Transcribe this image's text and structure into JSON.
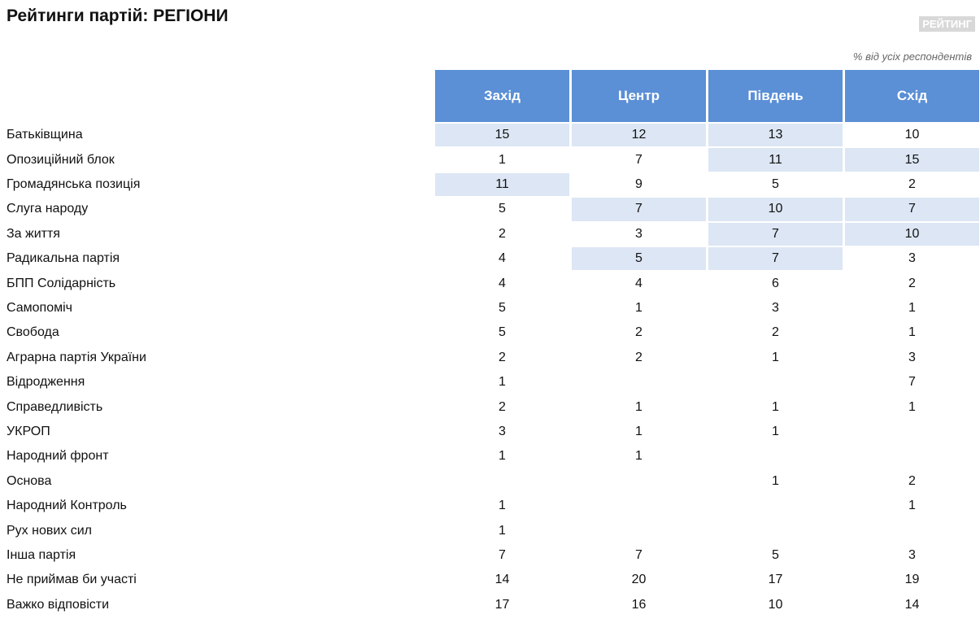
{
  "header": {
    "title": "Рейтинги партій: РЕГІОНИ",
    "logo": "РЕЙТИНГ",
    "note": "% від усіх респондентів"
  },
  "table": {
    "columns": [
      "Захід",
      "Центр",
      "Південь",
      "Схід"
    ],
    "rows": [
      {
        "label": "Батьківщина",
        "values": [
          15,
          12,
          13,
          10
        ],
        "highlight": [
          true,
          true,
          true,
          false
        ]
      },
      {
        "label": "Опозиційний блок",
        "values": [
          1,
          7,
          11,
          15
        ],
        "highlight": [
          false,
          false,
          true,
          true
        ]
      },
      {
        "label": "Громадянська позиція",
        "values": [
          11,
          9,
          5,
          2
        ],
        "highlight": [
          true,
          false,
          false,
          false
        ]
      },
      {
        "label": "Слуга народу",
        "values": [
          5,
          7,
          10,
          7
        ],
        "highlight": [
          false,
          true,
          true,
          true
        ]
      },
      {
        "label": "За життя",
        "values": [
          2,
          3,
          7,
          10
        ],
        "highlight": [
          false,
          false,
          true,
          true
        ]
      },
      {
        "label": "Радикальна партія",
        "values": [
          4,
          5,
          7,
          3
        ],
        "highlight": [
          false,
          true,
          true,
          false
        ]
      },
      {
        "label": "БПП Солідарність",
        "values": [
          4,
          4,
          6,
          2
        ],
        "highlight": [
          false,
          false,
          false,
          false
        ]
      },
      {
        "label": "Самопоміч",
        "values": [
          5,
          1,
          3,
          1
        ],
        "highlight": [
          false,
          false,
          false,
          false
        ]
      },
      {
        "label": "Свобода",
        "values": [
          5,
          2,
          2,
          1
        ],
        "highlight": [
          false,
          false,
          false,
          false
        ]
      },
      {
        "label": "Аграрна партія України",
        "values": [
          2,
          2,
          1,
          3
        ],
        "highlight": [
          false,
          false,
          false,
          false
        ]
      },
      {
        "label": "Відродження",
        "values": [
          1,
          null,
          null,
          7
        ],
        "highlight": [
          false,
          false,
          false,
          false
        ]
      },
      {
        "label": "Справедливість",
        "values": [
          2,
          1,
          1,
          1
        ],
        "highlight": [
          false,
          false,
          false,
          false
        ]
      },
      {
        "label": "УКРОП",
        "values": [
          3,
          1,
          1,
          null
        ],
        "highlight": [
          false,
          false,
          false,
          false
        ]
      },
      {
        "label": "Народний фронт",
        "values": [
          1,
          1,
          null,
          null
        ],
        "highlight": [
          false,
          false,
          false,
          false
        ]
      },
      {
        "label": "Основа",
        "values": [
          null,
          null,
          1,
          2
        ],
        "highlight": [
          false,
          false,
          false,
          false
        ]
      },
      {
        "label": "Народний Контроль",
        "values": [
          1,
          null,
          null,
          1
        ],
        "highlight": [
          false,
          false,
          false,
          false
        ]
      },
      {
        "label": "Рух нових сил",
        "values": [
          1,
          null,
          null,
          null
        ],
        "highlight": [
          false,
          false,
          false,
          false
        ]
      },
      {
        "label": "Інша партія",
        "values": [
          7,
          7,
          5,
          3
        ],
        "highlight": [
          false,
          false,
          false,
          false
        ]
      },
      {
        "label": "Не приймав би участі",
        "values": [
          14,
          20,
          17,
          19
        ],
        "highlight": [
          false,
          false,
          false,
          false
        ]
      },
      {
        "label": "Важко відповісти",
        "values": [
          17,
          16,
          10,
          14
        ],
        "highlight": [
          false,
          false,
          false,
          false
        ]
      }
    ]
  }
}
